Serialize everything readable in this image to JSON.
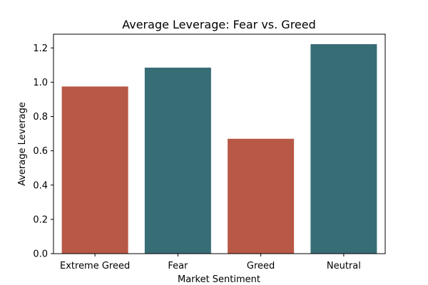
{
  "chart_data": {
    "type": "bar",
    "title": "Average Leverage: Fear vs. Greed",
    "xlabel": "Market Sentiment",
    "ylabel": "Average Leverage",
    "categories": [
      "Extreme Greed",
      "Fear",
      "Greed",
      "Neutral"
    ],
    "values": [
      0.975,
      1.085,
      0.67,
      1.222
    ],
    "bar_colors": [
      "#b85846",
      "#376d75",
      "#b85846",
      "#376d75"
    ],
    "ylim": [
      0,
      1.28
    ],
    "yticks": [
      0.0,
      0.2,
      0.4,
      0.6,
      0.8,
      1.0,
      1.2
    ],
    "ytick_labels": [
      "0.0",
      "0.2",
      "0.4",
      "0.6",
      "0.8",
      "1.0",
      "1.2"
    ],
    "grid": false,
    "legend": "none"
  }
}
